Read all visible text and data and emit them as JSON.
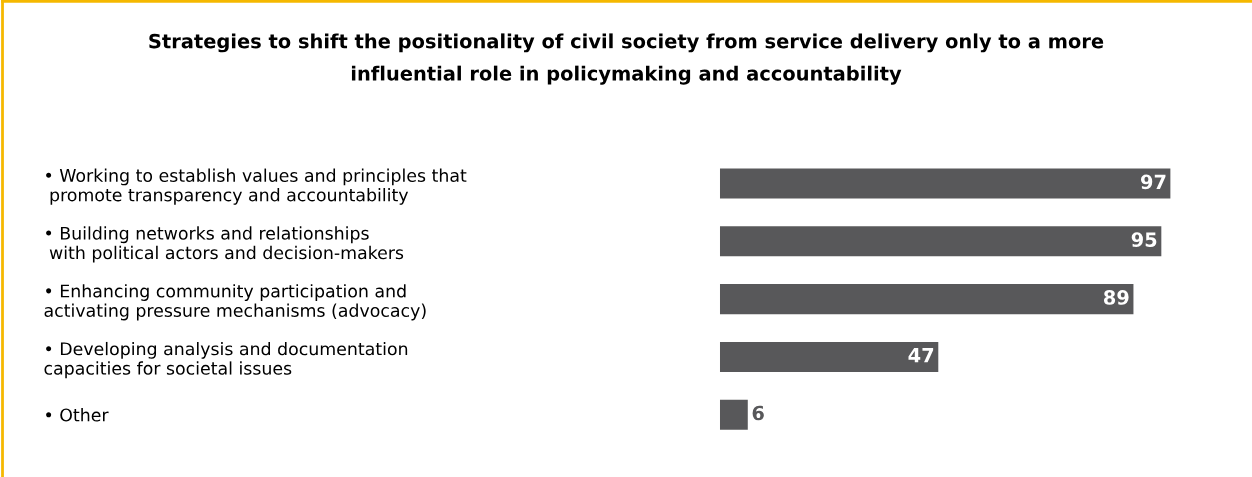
{
  "chart_data": {
    "type": "bar",
    "orientation": "horizontal",
    "title": "Strategies to shift the positionality of civil society from service delivery only to a more\ninfluential role in policymaking and accountability",
    "categories": [
      "• Working to establish values and principles that\n promote transparency and accountability",
      "• Building networks and relationships\n with political actors and decision-makers",
      "• Enhancing community participation and\nactivating pressure mechanisms (advocacy)",
      "• Developing analysis and documentation\ncapacities for societal issues",
      "• Other"
    ],
    "values": [
      97,
      95,
      89,
      47,
      6
    ],
    "color": "#58585a",
    "data_labels": true,
    "grid": false,
    "legend": false
  }
}
